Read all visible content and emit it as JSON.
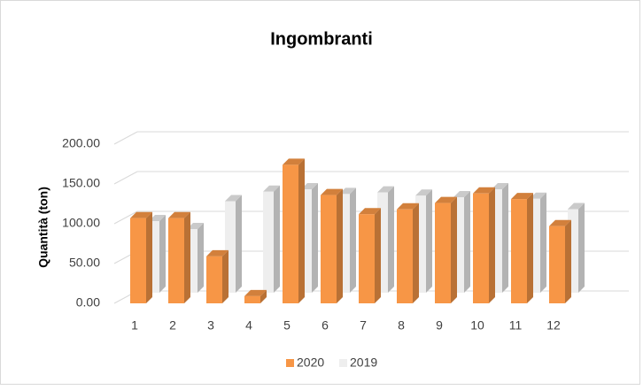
{
  "chart_data": {
    "type": "bar3d",
    "title": "Ingombranti",
    "y_label": "Quantità (ton)",
    "categories": [
      "1",
      "2",
      "3",
      "4",
      "5",
      "6",
      "7",
      "8",
      "9",
      "10",
      "11",
      "12"
    ],
    "series": [
      {
        "name": "2020",
        "color": "#f79646",
        "values": [
          107,
          107,
          59,
          9,
          174,
          136,
          112,
          118,
          126,
          138,
          131,
          97
        ]
      },
      {
        "name": "2019",
        "color": "#eeeeee",
        "values": [
          90,
          80,
          115,
          127,
          130,
          124,
          126,
          122,
          120,
          130,
          118,
          105
        ]
      }
    ],
    "ylim": [
      0,
      200
    ],
    "yticks": [
      {
        "value": 0,
        "label": "0.00"
      },
      {
        "value": 50,
        "label": "50.00"
      },
      {
        "value": 100,
        "label": "100.00"
      },
      {
        "value": 150,
        "label": "150.00"
      },
      {
        "value": 200,
        "label": "200.00"
      }
    ],
    "grid": true,
    "legend": "bottom"
  }
}
